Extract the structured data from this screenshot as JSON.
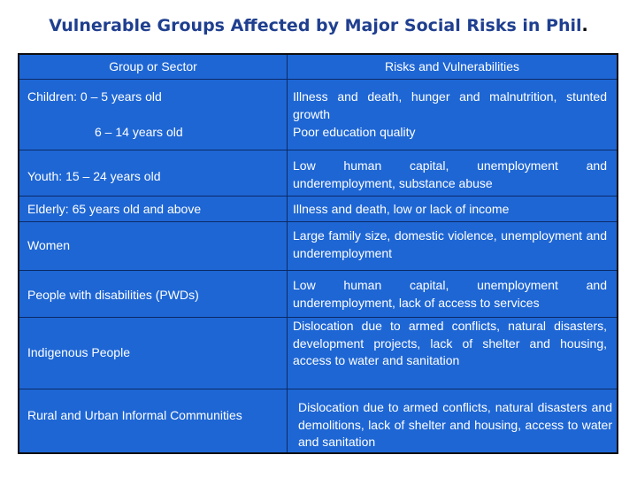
{
  "title": "Vulnerable Groups Affected by  Major Social Risks in Phil",
  "title_period": ".",
  "headers": {
    "group": "Group or Sector",
    "risks": "Risks and Vulnerabilities"
  },
  "rows": [
    {
      "group_lines": [
        "Children: 0 – 5 years old",
        "6 – 14 years old"
      ],
      "risk_lines": [
        "Illness and death, hunger and malnutrition, stunted growth",
        "Poor education quality"
      ]
    },
    {
      "group": "Youth: 15 – 24 years old",
      "risk": "Low human capital, unemployment and underemployment, substance abuse"
    },
    {
      "group": "Elderly: 65 years old and above",
      "risk": "Illness and death, low or lack of income"
    },
    {
      "group": "Women",
      "risk": "Large family size, domestic violence, unemployment and underemployment"
    },
    {
      "group": "People with disabilities (PWDs)",
      "risk": "Low human capital, unemployment and underemployment, lack of access to services"
    },
    {
      "group": "Indigenous People",
      "risk": "Dislocation due to armed conflicts, natural disasters, development projects, lack of shelter and housing, access to water and sanitation"
    },
    {
      "group": "Rural and Urban Informal Communities",
      "risk": "Dislocation due to armed conflicts, natural disasters and demolitions, lack of shelter and housing, access to water and sanitation"
    }
  ],
  "colors": {
    "title": "#1f3f8f",
    "table_bg": "#1e66d4",
    "grid": "#0b2a66",
    "text": "#ffffff"
  }
}
